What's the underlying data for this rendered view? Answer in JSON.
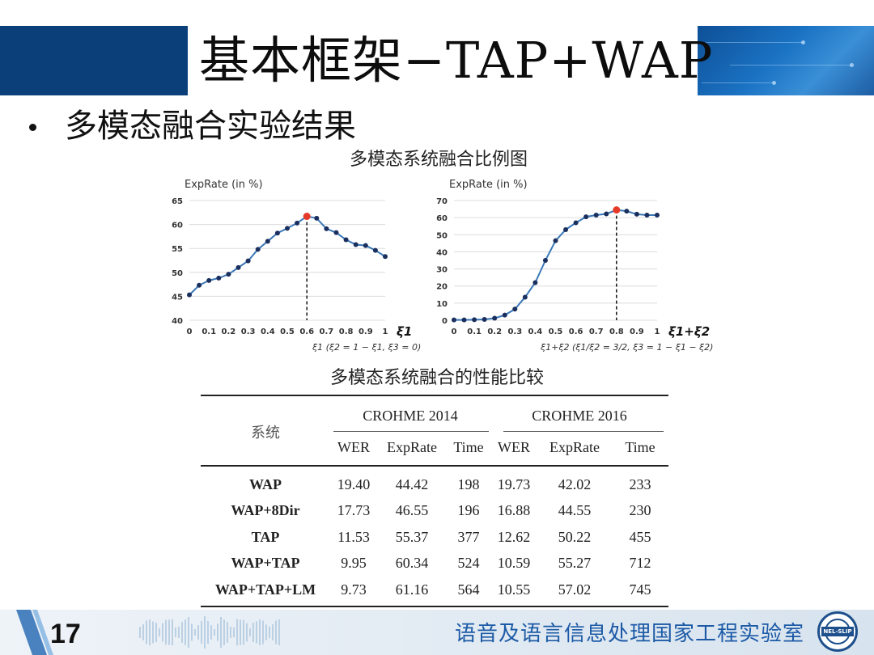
{
  "slide": {
    "title": "基本框架−TAP+WAP",
    "bullet": "多模态融合实验结果",
    "figure_title": "多模态系统融合比例图",
    "table_title": "多模态系统融合的性能比较",
    "page_number": "17",
    "footer_org": "语音及语言信息处理国家工程实验室",
    "logo_text": "NEL-SLIP",
    "colors": {
      "header_blue": "#0b3f7a",
      "line_blue": "#3a78b8",
      "dot_navy": "#1a2f5e",
      "peak_red": "#e53a2a",
      "footer_text": "#1c5aa6"
    }
  },
  "chart_data": [
    {
      "type": "line",
      "ylabel": "ExpRate (in %)",
      "xlabel": "ξ1",
      "caption": "ξ1 (ξ2 = 1 − ξ1, ξ3 = 0)",
      "ylim": [
        40,
        65
      ],
      "yticks": [
        40,
        45,
        50,
        55,
        60,
        65
      ],
      "xlim": [
        0,
        1
      ],
      "xticks": [
        "0",
        "0.1",
        "0.2",
        "0.3",
        "0.4",
        "0.5",
        "0.6",
        "0.7",
        "0.8",
        "0.9",
        "1"
      ],
      "grid": true,
      "x": [
        0,
        0.05,
        0.1,
        0.15,
        0.2,
        0.25,
        0.3,
        0.35,
        0.4,
        0.45,
        0.5,
        0.55,
        0.6,
        0.65,
        0.7,
        0.75,
        0.8,
        0.85,
        0.9,
        0.95,
        1.0
      ],
      "y": [
        45.3,
        47.3,
        48.3,
        48.8,
        49.6,
        51.0,
        52.4,
        54.8,
        56.5,
        58.2,
        59.2,
        60.3,
        61.7,
        61.3,
        59.1,
        58.3,
        56.8,
        55.8,
        55.6,
        54.6,
        53.3
      ],
      "highlight": {
        "x": 0.6,
        "y": 61.7
      }
    },
    {
      "type": "line",
      "ylabel": "ExpRate (in %)",
      "xlabel": "ξ1+ξ2",
      "caption": "ξ1+ξ2 (ξ1/ξ2 = 3/2, ξ3 = 1 − ξ1 − ξ2)",
      "ylim": [
        0,
        70
      ],
      "yticks": [
        0,
        10,
        20,
        30,
        40,
        50,
        60,
        70
      ],
      "xlim": [
        0,
        1
      ],
      "xticks": [
        "0",
        "0.1",
        "0.2",
        "0.3",
        "0.4",
        "0.5",
        "0.6",
        "0.7",
        "0.8",
        "0.9",
        "1"
      ],
      "grid": true,
      "x": [
        0,
        0.05,
        0.1,
        0.15,
        0.2,
        0.25,
        0.3,
        0.35,
        0.4,
        0.45,
        0.5,
        0.55,
        0.6,
        0.65,
        0.7,
        0.75,
        0.8,
        0.85,
        0.9,
        0.95,
        1.0
      ],
      "y": [
        0.2,
        0.2,
        0.3,
        0.5,
        1.2,
        3.0,
        6.5,
        13.5,
        22.0,
        35.0,
        46.5,
        53.0,
        57.0,
        60.5,
        61.5,
        62.2,
        64.5,
        63.8,
        62.0,
        61.5,
        61.5
      ],
      "highlight": {
        "x": 0.8,
        "y": 64.5
      }
    },
    {
      "type": "table",
      "title": "多模态系统融合的性能比较",
      "row_header": "系统",
      "groups": [
        "CROHME 2014",
        "CROHME 2016"
      ],
      "columns": [
        "WER",
        "ExpRate",
        "Time",
        "WER",
        "ExpRate",
        "Time"
      ],
      "rows": [
        {
          "system": "WAP",
          "values": [
            "19.40",
            "44.42",
            "198",
            "19.73",
            "42.02",
            "233"
          ]
        },
        {
          "system": "WAP+8Dir",
          "values": [
            "17.73",
            "46.55",
            "196",
            "16.88",
            "44.55",
            "230"
          ]
        },
        {
          "system": "TAP",
          "values": [
            "11.53",
            "55.37",
            "377",
            "12.62",
            "50.22",
            "455"
          ]
        },
        {
          "system": "WAP+TAP",
          "values": [
            "9.95",
            "60.34",
            "524",
            "10.59",
            "55.27",
            "712"
          ]
        },
        {
          "system": "WAP+TAP+LM",
          "values": [
            "9.73",
            "61.16",
            "564",
            "10.55",
            "57.02",
            "745"
          ]
        }
      ]
    }
  ]
}
